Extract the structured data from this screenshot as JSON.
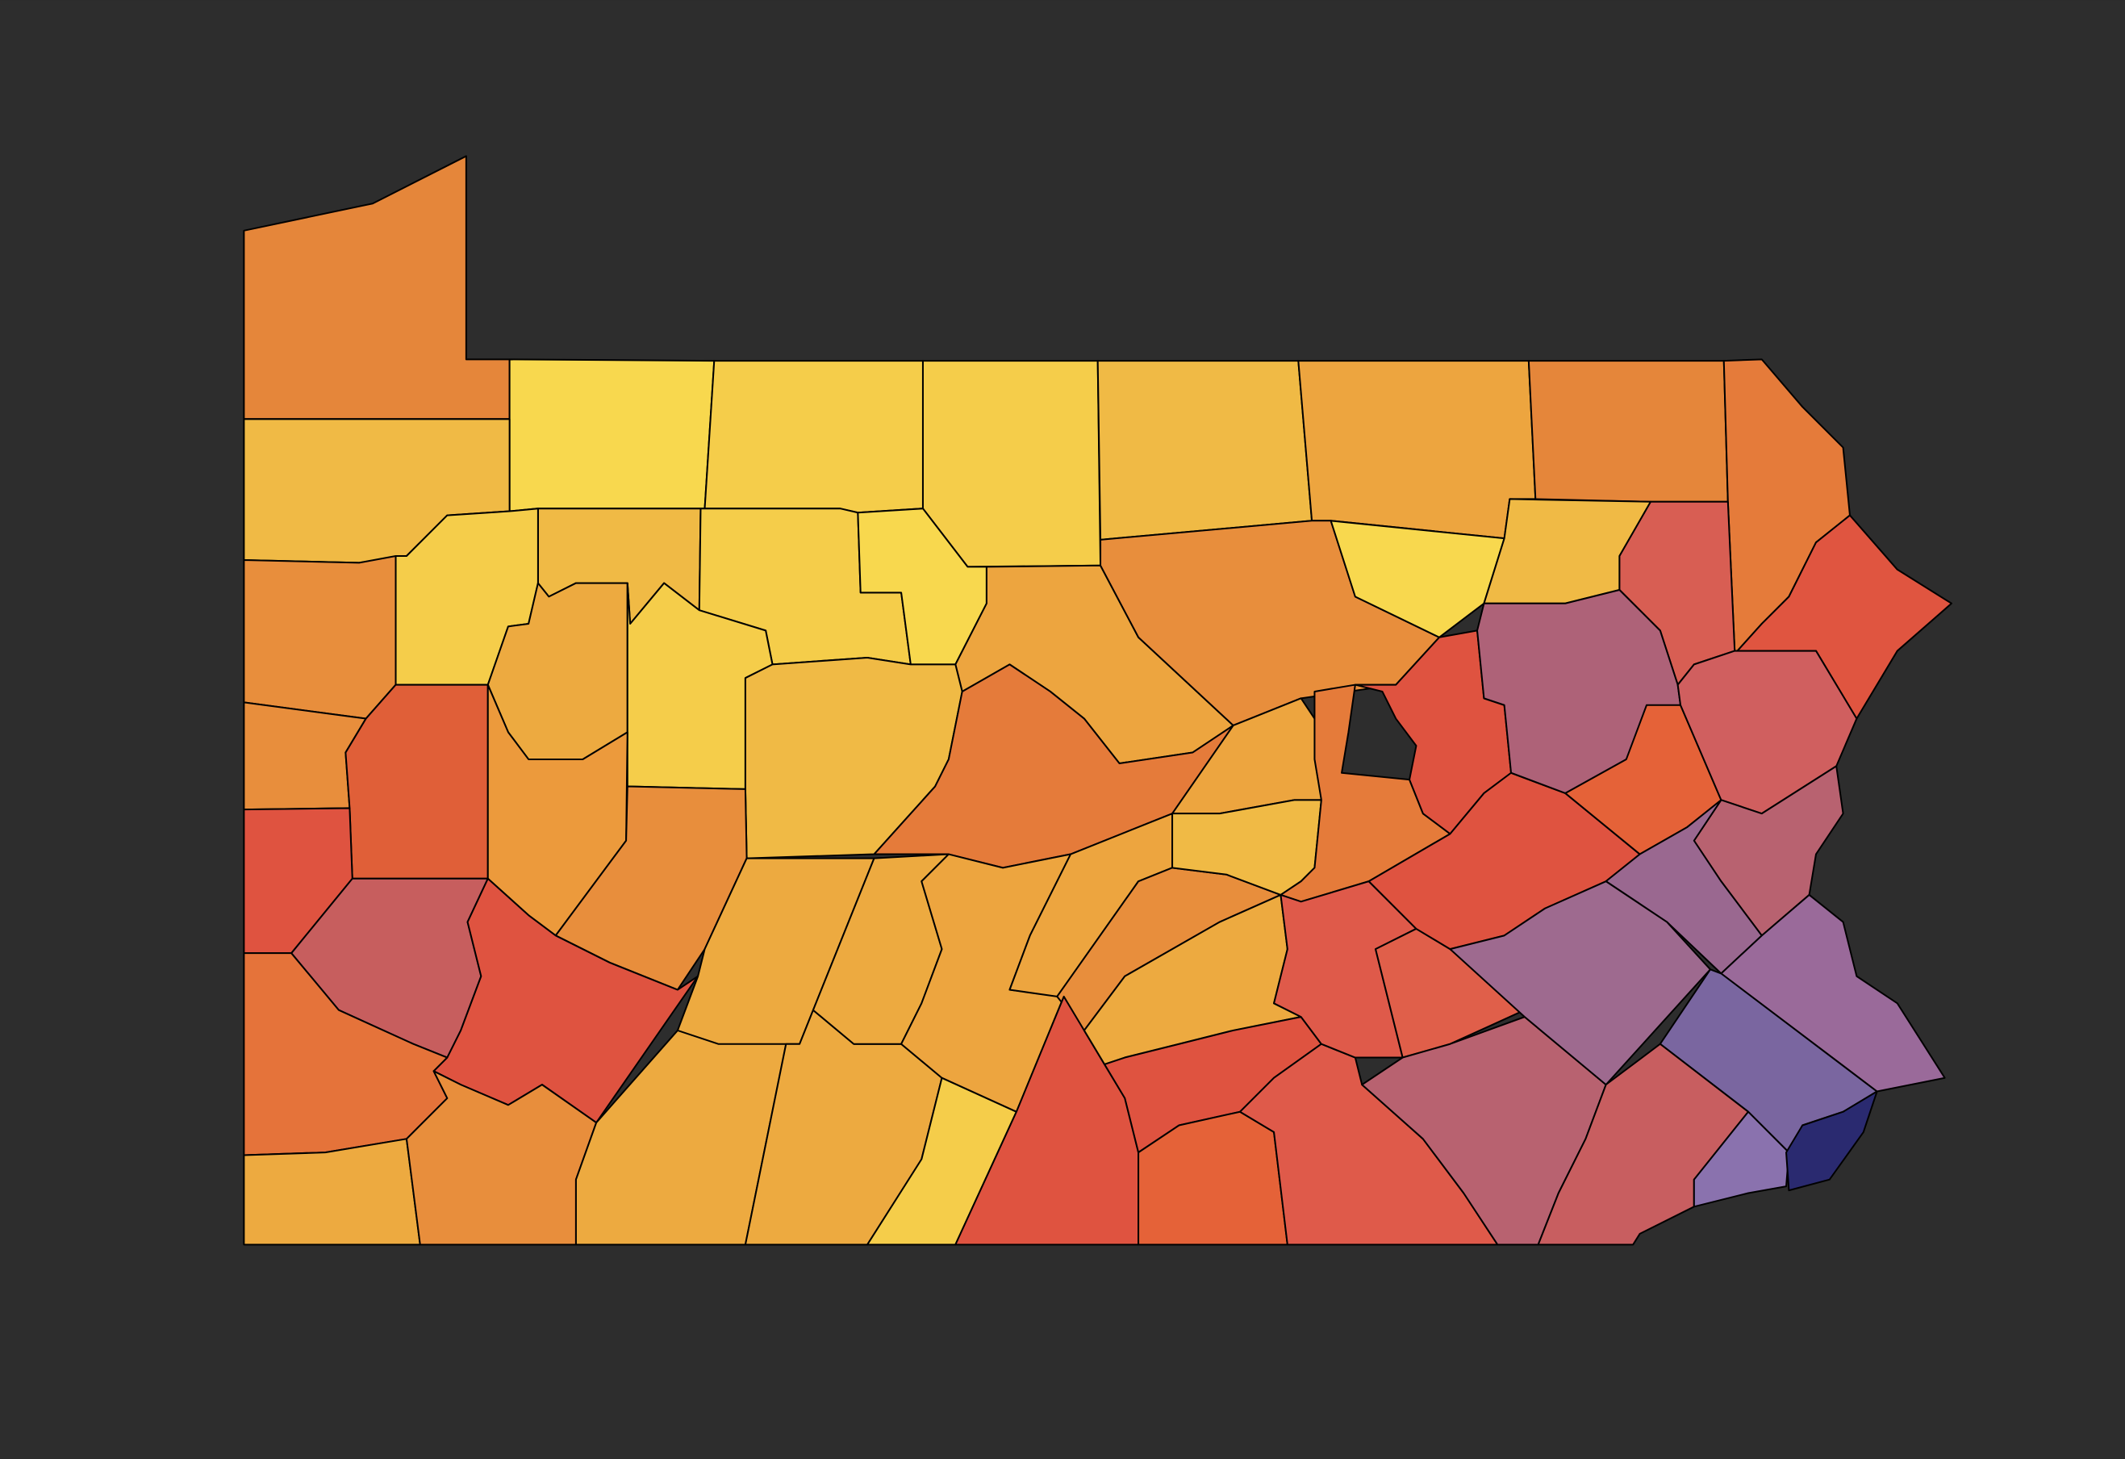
{
  "map": {
    "background": "#2d2d2d",
    "fills": [
      "#E5863A",
      "#F8D84E",
      "#F5CD4A",
      "#F5CD4A",
      "#F0BA45",
      "#EDA53F",
      "#E5863A",
      "#E57B3A",
      "#F0BA45",
      "#F0BA45",
      "#F5CD4A",
      "#F5CD4A",
      "#F8D84E",
      "#EDA53F",
      "#E88E3C",
      "#F8D84E",
      "#F0BA45",
      "#D85E53",
      "#E05540",
      "#E88E3C",
      "#E88E3C",
      "#E05F38",
      "#EDAA40",
      "#F5CD4A",
      "#F0BA45",
      "#DF5340",
      "#EC9A3C",
      "#E88E3C",
      "#C75E5E",
      "#DF5340",
      "#E5733A",
      "#EDAA40",
      "#E88E3C",
      "#EDAA40",
      "#EDAA40",
      "#EDAA40",
      "#EDAA40",
      "#F5CD4A",
      "#E57B3A",
      "#EDA53F",
      "#EDA53F",
      "#E88E3C",
      "#DF5340",
      "#EDAA40",
      "#DF5340",
      "#E56238",
      "#DF5A4A",
      "#EDA53F",
      "#F0BA45",
      "#E57B3A",
      "#DF5340",
      "#DF5A4A",
      "#E05F4A",
      "#B86270",
      "#DF5340",
      "#AE6278",
      "#E56238",
      "#D05F5F",
      "#B86270",
      "#9A6890",
      "#9E6A8F",
      "#9A6A9A",
      "#7A66A0",
      "#C85E60",
      "#8A72AE",
      "#2A2A70"
    ]
  }
}
